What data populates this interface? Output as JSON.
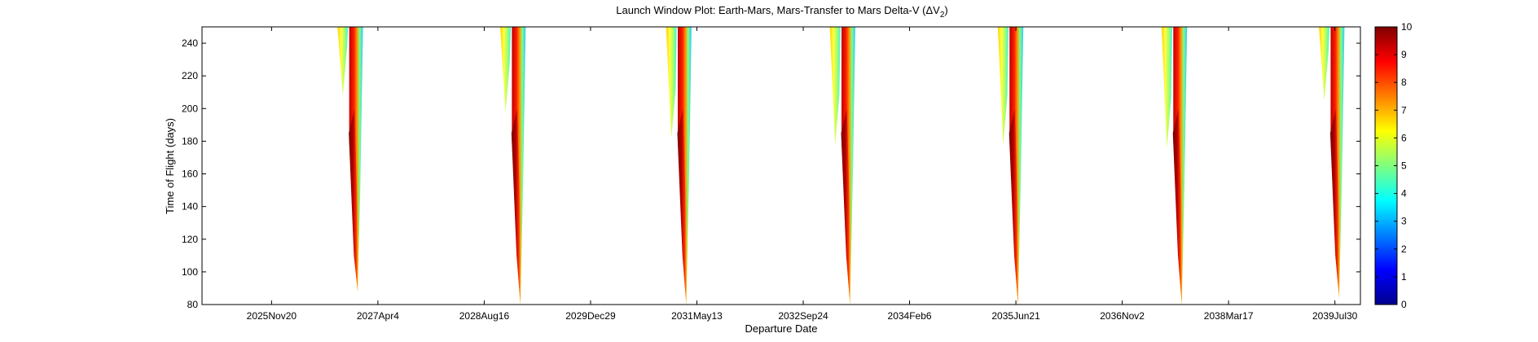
{
  "chart_data": {
    "type": "heatmap",
    "title": "Launch Window Plot: Earth-Mars, Mars-Transfer to Mars Delta-V (ΔV",
    "title_subscript": "2",
    "title_suffix": ")",
    "xlabel": "Departure Date",
    "ylabel": "Time of Flight (days)",
    "x_ticks": [
      "2025Nov20",
      "2027Apr4",
      "2028Aug16",
      "2029Dec29",
      "2031May13",
      "2032Sep24",
      "2034Feb6",
      "2035Jun21",
      "2036Nov2",
      "2038Mar17",
      "2039Jul30"
    ],
    "x_tick_days": [
      0,
      500,
      1000,
      1500,
      2000,
      2500,
      3000,
      3500,
      4000,
      4500,
      5000
    ],
    "xlim_days": [
      -327,
      5120
    ],
    "ylim": [
      80,
      250
    ],
    "y_ticks": [
      80,
      100,
      120,
      140,
      160,
      180,
      200,
      220,
      240
    ],
    "colorbar": {
      "range": [
        0,
        10
      ],
      "ticks": [
        0,
        1,
        2,
        3,
        4,
        5,
        6,
        7,
        8,
        9,
        10
      ],
      "colormap": "jet"
    },
    "grid": false,
    "windows": [
      {
        "center_day": 395,
        "tof_min": 88,
        "cusp_tof": 208,
        "high_dv_fraction": 0.55
      },
      {
        "center_day": 1160,
        "tof_min": 80,
        "cusp_tof": 198,
        "high_dv_fraction": 0.5
      },
      {
        "center_day": 1940,
        "tof_min": 80,
        "cusp_tof": 182,
        "high_dv_fraction": 0.45
      },
      {
        "center_day": 2710,
        "tof_min": 80,
        "cusp_tof": 178,
        "high_dv_fraction": 0.42
      },
      {
        "center_day": 3500,
        "tof_min": 80,
        "cusp_tof": 178,
        "high_dv_fraction": 0.4
      },
      {
        "center_day": 4270,
        "tof_min": 80,
        "cusp_tof": 176,
        "high_dv_fraction": 0.42
      },
      {
        "center_day": 5010,
        "tof_min": 84,
        "cusp_tof": 205,
        "high_dv_fraction": 0.55
      }
    ]
  }
}
